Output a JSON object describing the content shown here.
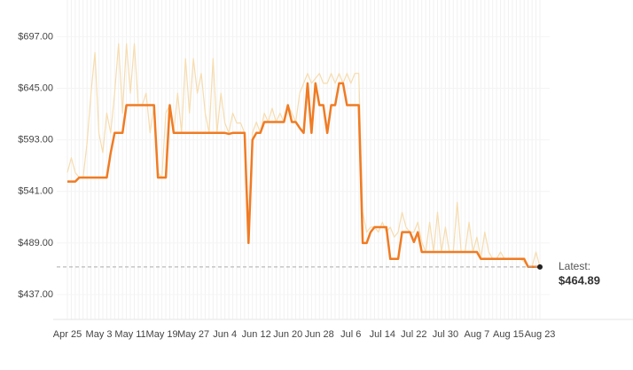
{
  "chart_data": {
    "type": "line",
    "x": [
      "Apr 25",
      "Apr 26",
      "Apr 27",
      "Apr 28",
      "Apr 29",
      "Apr 30",
      "May 1",
      "May 2",
      "May 3",
      "May 4",
      "May 5",
      "May 6",
      "May 7",
      "May 8",
      "May 9",
      "May 10",
      "May 11",
      "May 12",
      "May 13",
      "May 14",
      "May 15",
      "May 16",
      "May 17",
      "May 18",
      "May 19",
      "May 20",
      "May 21",
      "May 22",
      "May 23",
      "May 24",
      "May 25",
      "May 26",
      "May 27",
      "May 28",
      "May 29",
      "May 30",
      "May 31",
      "Jun 1",
      "Jun 2",
      "Jun 3",
      "Jun 4",
      "Jun 5",
      "Jun 6",
      "Jun 7",
      "Jun 8",
      "Jun 9",
      "Jun 10",
      "Jun 11",
      "Jun 12",
      "Jun 13",
      "Jun 14",
      "Jun 15",
      "Jun 16",
      "Jun 17",
      "Jun 18",
      "Jun 19",
      "Jun 20",
      "Jun 21",
      "Jun 22",
      "Jun 23",
      "Jun 24",
      "Jun 25",
      "Jun 26",
      "Jun 27",
      "Jun 28",
      "Jun 29",
      "Jun 30",
      "Jul 1",
      "Jul 2",
      "Jul 3",
      "Jul 4",
      "Jul 5",
      "Jul 6",
      "Jul 7",
      "Jul 8",
      "Jul 9",
      "Jul 10",
      "Jul 11",
      "Jul 12",
      "Jul 13",
      "Jul 14",
      "Jul 15",
      "Jul 16",
      "Jul 17",
      "Jul 18",
      "Jul 19",
      "Jul 20",
      "Jul 21",
      "Jul 22",
      "Jul 23",
      "Jul 24",
      "Jul 25",
      "Jul 26",
      "Jul 27",
      "Jul 28",
      "Jul 29",
      "Jul 30",
      "Jul 31",
      "Aug 1",
      "Aug 2",
      "Aug 3",
      "Aug 4",
      "Aug 5",
      "Aug 6",
      "Aug 7",
      "Aug 8",
      "Aug 9",
      "Aug 10",
      "Aug 11",
      "Aug 12",
      "Aug 13",
      "Aug 14",
      "Aug 15",
      "Aug 16",
      "Aug 17",
      "Aug 18",
      "Aug 19",
      "Aug 20",
      "Aug 21",
      "Aug 22",
      "Aug 23"
    ],
    "xticks": [
      "Apr 25",
      "May 3",
      "May 11",
      "May 19",
      "May 27",
      "Jun 4",
      "Jun 12",
      "Jun 20",
      "Jun 28",
      "Jul 6",
      "Jul 14",
      "Jul 22",
      "Jul 30",
      "Aug 7",
      "Aug 15",
      "Aug 23"
    ],
    "ylim": [
      412,
      734
    ],
    "yticks": [
      {
        "value": 437,
        "label": "$437.00"
      },
      {
        "value": 489,
        "label": "$489.00"
      },
      {
        "value": 541,
        "label": "$541.00"
      },
      {
        "value": 593,
        "label": "$593.00"
      },
      {
        "value": 645,
        "label": "$645.00"
      },
      {
        "value": 697,
        "label": "$697.00"
      }
    ],
    "grid": true,
    "series": [
      {
        "color": "#f6dcae",
        "values": [
          560,
          575,
          560,
          555,
          555,
          590,
          640,
          681,
          600,
          580,
          620,
          600,
          640,
          690,
          620,
          690,
          640,
          690,
          628,
          628,
          640,
          600,
          628,
          560,
          555,
          620,
          628,
          600,
          640,
          600,
          675,
          620,
          675,
          640,
          660,
          620,
          600,
          675,
          600,
          640,
          610,
          600,
          620,
          610,
          610,
          600,
          489,
          600,
          611,
          600,
          620,
          611,
          625,
          611,
          620,
          611,
          628,
          620,
          611,
          640,
          650,
          660,
          650,
          655,
          660,
          650,
          650,
          660,
          650,
          660,
          650,
          660,
          650,
          660,
          660,
          520,
          500,
          505,
          505,
          500,
          510,
          500,
          505,
          495,
          500,
          520,
          505,
          500,
          500,
          510,
          490,
          480,
          510,
          480,
          520,
          480,
          505,
          480,
          480,
          530,
          480,
          480,
          510,
          480,
          495,
          473,
          500,
          480,
          473,
          473,
          480,
          473,
          473,
          473,
          473,
          473,
          470,
          465,
          465,
          480,
          465
        ]
      },
      {
        "color": "#f07b23",
        "values": [
          551,
          551,
          551,
          555,
          555,
          555,
          555,
          555,
          555,
          555,
          555,
          580,
          600,
          600,
          600,
          628,
          628,
          628,
          628,
          628,
          628,
          628,
          628,
          555,
          555,
          555,
          628,
          600,
          600,
          600,
          600,
          600,
          600,
          600,
          600,
          600,
          600,
          600,
          600,
          600,
          600,
          599,
          600,
          600,
          600,
          600,
          489,
          593,
          600,
          600,
          611,
          611,
          611,
          611,
          611,
          611,
          628,
          611,
          611,
          605,
          600,
          650,
          600,
          650,
          628,
          628,
          600,
          628,
          628,
          650,
          650,
          628,
          628,
          628,
          628,
          489,
          489,
          500,
          505,
          505,
          505,
          505,
          473,
          473,
          473,
          500,
          500,
          500,
          490,
          500,
          480,
          480,
          480,
          480,
          480,
          480,
          480,
          480,
          480,
          480,
          480,
          480,
          480,
          480,
          480,
          473,
          473,
          473,
          473,
          473,
          473,
          473,
          473,
          473,
          473,
          473,
          473,
          465,
          465,
          465,
          464.89
        ]
      }
    ],
    "latest": {
      "label": "Latest:",
      "value": 464.89,
      "value_label": "$464.89"
    }
  }
}
